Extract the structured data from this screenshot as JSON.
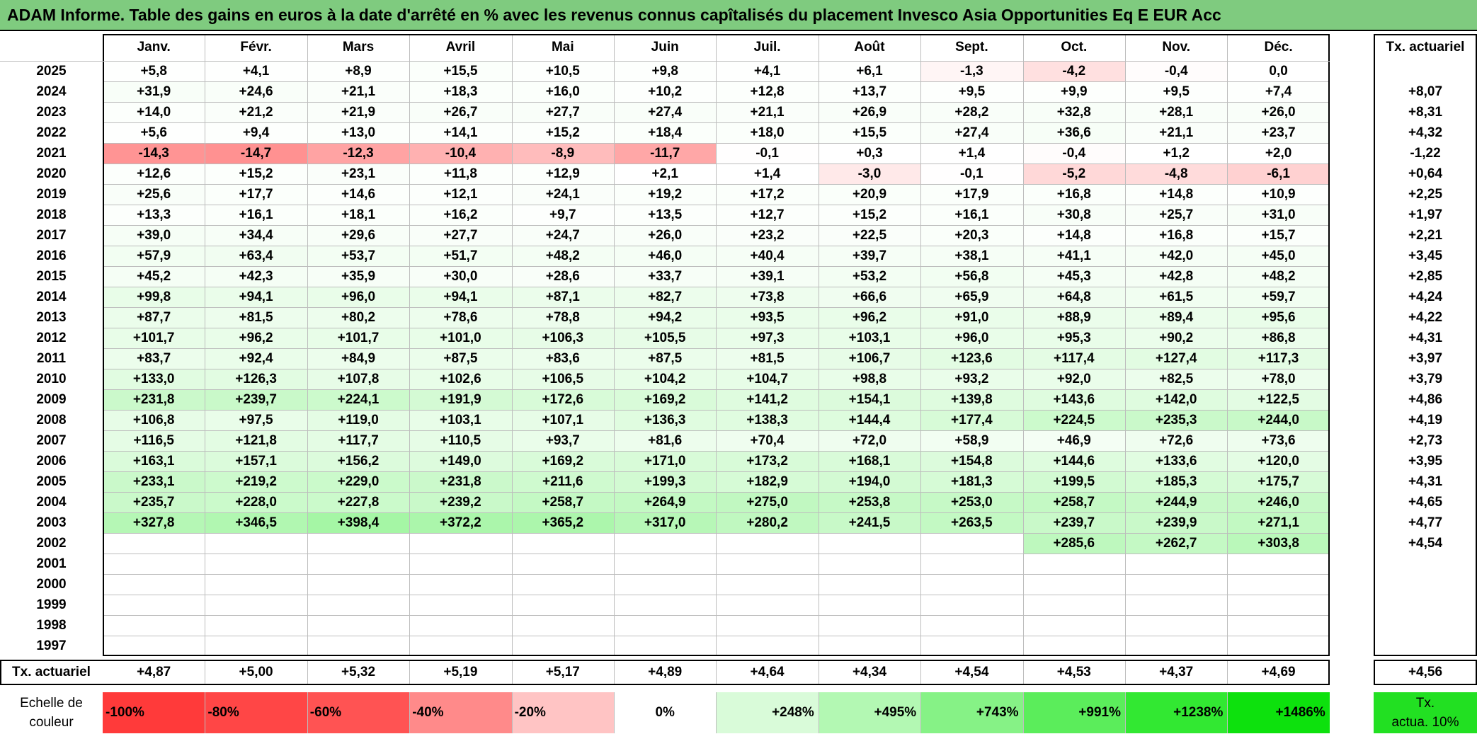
{
  "title": "ADAM Informe. Table des gains en euros à la date d'arrêté en % avec les revenus connus capîtalisés du placement Invesco Asia Opportunities Eq E EUR Acc",
  "chart_data": {
    "type": "heatmap",
    "columns": [
      "Janv.",
      "Févr.",
      "Mars",
      "Avril",
      "Mai",
      "Juin",
      "Juil.",
      "Août",
      "Sept.",
      "Oct.",
      "Nov.",
      "Déc."
    ],
    "rate_header": "Tx. actuariel",
    "rows": [
      {
        "year": "2025",
        "values": [
          "+5,8",
          "+4,1",
          "+8,9",
          "+15,5",
          "+10,5",
          "+9,8",
          "+4,1",
          "+6,1",
          "-1,3",
          "-4,2",
          "-0,4",
          "0,0"
        ],
        "rate": ""
      },
      {
        "year": "2024",
        "values": [
          "+31,9",
          "+24,6",
          "+21,1",
          "+18,3",
          "+16,0",
          "+10,2",
          "+12,8",
          "+13,7",
          "+9,5",
          "+9,9",
          "+9,5",
          "+7,4"
        ],
        "rate": "+8,07"
      },
      {
        "year": "2023",
        "values": [
          "+14,0",
          "+21,2",
          "+21,9",
          "+26,7",
          "+27,7",
          "+27,4",
          "+21,1",
          "+26,9",
          "+28,2",
          "+32,8",
          "+28,1",
          "+26,0"
        ],
        "rate": "+8,31"
      },
      {
        "year": "2022",
        "values": [
          "+5,6",
          "+9,4",
          "+13,0",
          "+14,1",
          "+15,2",
          "+18,4",
          "+18,0",
          "+15,5",
          "+27,4",
          "+36,6",
          "+21,1",
          "+23,7"
        ],
        "rate": "+4,32"
      },
      {
        "year": "2021",
        "values": [
          "-14,3",
          "-14,7",
          "-12,3",
          "-10,4",
          "-8,9",
          "-11,7",
          "-0,1",
          "+0,3",
          "+1,4",
          "-0,4",
          "+1,2",
          "+2,0"
        ],
        "rate": "-1,22"
      },
      {
        "year": "2020",
        "values": [
          "+12,6",
          "+15,2",
          "+23,1",
          "+11,8",
          "+12,9",
          "+2,1",
          "+1,4",
          "-3,0",
          "-0,1",
          "-5,2",
          "-4,8",
          "-6,1"
        ],
        "rate": "+0,64"
      },
      {
        "year": "2019",
        "values": [
          "+25,6",
          "+17,7",
          "+14,6",
          "+12,1",
          "+24,1",
          "+19,2",
          "+17,2",
          "+20,9",
          "+17,9",
          "+16,8",
          "+14,8",
          "+10,9"
        ],
        "rate": "+2,25"
      },
      {
        "year": "2018",
        "values": [
          "+13,3",
          "+16,1",
          "+18,1",
          "+16,2",
          "+9,7",
          "+13,5",
          "+12,7",
          "+15,2",
          "+16,1",
          "+30,8",
          "+25,7",
          "+31,0"
        ],
        "rate": "+1,97"
      },
      {
        "year": "2017",
        "values": [
          "+39,0",
          "+34,4",
          "+29,6",
          "+27,7",
          "+24,7",
          "+26,0",
          "+23,2",
          "+22,5",
          "+20,3",
          "+14,8",
          "+16,8",
          "+15,7"
        ],
        "rate": "+2,21"
      },
      {
        "year": "2016",
        "values": [
          "+57,9",
          "+63,4",
          "+53,7",
          "+51,7",
          "+48,2",
          "+46,0",
          "+40,4",
          "+39,7",
          "+38,1",
          "+41,1",
          "+42,0",
          "+45,0"
        ],
        "rate": "+3,45"
      },
      {
        "year": "2015",
        "values": [
          "+45,2",
          "+42,3",
          "+35,9",
          "+30,0",
          "+28,6",
          "+33,7",
          "+39,1",
          "+53,2",
          "+56,8",
          "+45,3",
          "+42,8",
          "+48,2"
        ],
        "rate": "+2,85"
      },
      {
        "year": "2014",
        "values": [
          "+99,8",
          "+94,1",
          "+96,0",
          "+94,1",
          "+87,1",
          "+82,7",
          "+73,8",
          "+66,6",
          "+65,9",
          "+64,8",
          "+61,5",
          "+59,7"
        ],
        "rate": "+4,24"
      },
      {
        "year": "2013",
        "values": [
          "+87,7",
          "+81,5",
          "+80,2",
          "+78,6",
          "+78,8",
          "+94,2",
          "+93,5",
          "+96,2",
          "+91,0",
          "+88,9",
          "+89,4",
          "+95,6"
        ],
        "rate": "+4,22"
      },
      {
        "year": "2012",
        "values": [
          "+101,7",
          "+96,2",
          "+101,7",
          "+101,0",
          "+106,3",
          "+105,5",
          "+97,3",
          "+103,1",
          "+96,0",
          "+95,3",
          "+90,2",
          "+86,8"
        ],
        "rate": "+4,31"
      },
      {
        "year": "2011",
        "values": [
          "+83,7",
          "+92,4",
          "+84,9",
          "+87,5",
          "+83,6",
          "+87,5",
          "+81,5",
          "+106,7",
          "+123,6",
          "+117,4",
          "+127,4",
          "+117,3"
        ],
        "rate": "+3,97"
      },
      {
        "year": "2010",
        "values": [
          "+133,0",
          "+126,3",
          "+107,8",
          "+102,6",
          "+106,5",
          "+104,2",
          "+104,7",
          "+98,8",
          "+93,2",
          "+92,0",
          "+82,5",
          "+78,0"
        ],
        "rate": "+3,79"
      },
      {
        "year": "2009",
        "values": [
          "+231,8",
          "+239,7",
          "+224,1",
          "+191,9",
          "+172,6",
          "+169,2",
          "+141,2",
          "+154,1",
          "+139,8",
          "+143,6",
          "+142,0",
          "+122,5"
        ],
        "rate": "+4,86"
      },
      {
        "year": "2008",
        "values": [
          "+106,8",
          "+97,5",
          "+119,0",
          "+103,1",
          "+107,1",
          "+136,3",
          "+138,3",
          "+144,4",
          "+177,4",
          "+224,5",
          "+235,3",
          "+244,0"
        ],
        "rate": "+4,19"
      },
      {
        "year": "2007",
        "values": [
          "+116,5",
          "+121,8",
          "+117,7",
          "+110,5",
          "+93,7",
          "+81,6",
          "+70,4",
          "+72,0",
          "+58,9",
          "+46,9",
          "+72,6",
          "+73,6"
        ],
        "rate": "+2,73"
      },
      {
        "year": "2006",
        "values": [
          "+163,1",
          "+157,1",
          "+156,2",
          "+149,0",
          "+169,2",
          "+171,0",
          "+173,2",
          "+168,1",
          "+154,8",
          "+144,6",
          "+133,6",
          "+120,0"
        ],
        "rate": "+3,95"
      },
      {
        "year": "2005",
        "values": [
          "+233,1",
          "+219,2",
          "+229,0",
          "+231,8",
          "+211,6",
          "+199,3",
          "+182,9",
          "+194,0",
          "+181,3",
          "+199,5",
          "+185,3",
          "+175,7"
        ],
        "rate": "+4,31"
      },
      {
        "year": "2004",
        "values": [
          "+235,7",
          "+228,0",
          "+227,8",
          "+239,2",
          "+258,7",
          "+264,9",
          "+275,0",
          "+253,8",
          "+253,0",
          "+258,7",
          "+244,9",
          "+246,0"
        ],
        "rate": "+4,65"
      },
      {
        "year": "2003",
        "values": [
          "+327,8",
          "+346,5",
          "+398,4",
          "+372,2",
          "+365,2",
          "+317,0",
          "+280,2",
          "+241,5",
          "+263,5",
          "+239,7",
          "+239,9",
          "+271,1"
        ],
        "rate": "+4,77"
      },
      {
        "year": "2002",
        "values": [
          "",
          "",
          "",
          "",
          "",
          "",
          "",
          "",
          "",
          "+285,6",
          "+262,7",
          "+303,8"
        ],
        "rate": "+4,54"
      },
      {
        "year": "2001",
        "values": [
          "",
          "",
          "",
          "",
          "",
          "",
          "",
          "",
          "",
          "",
          "",
          ""
        ],
        "rate": ""
      },
      {
        "year": "2000",
        "values": [
          "",
          "",
          "",
          "",
          "",
          "",
          "",
          "",
          "",
          "",
          "",
          ""
        ],
        "rate": ""
      },
      {
        "year": "1999",
        "values": [
          "",
          "",
          "",
          "",
          "",
          "",
          "",
          "",
          "",
          "",
          "",
          ""
        ],
        "rate": ""
      },
      {
        "year": "1998",
        "values": [
          "",
          "",
          "",
          "",
          "",
          "",
          "",
          "",
          "",
          "",
          "",
          ""
        ],
        "rate": ""
      },
      {
        "year": "1997",
        "values": [
          "",
          "",
          "",
          "",
          "",
          "",
          "",
          "",
          "",
          "",
          "",
          ""
        ],
        "rate": ""
      }
    ],
    "summary": {
      "label": "Tx. actuariel",
      "values": [
        "+4,87",
        "+5,00",
        "+5,32",
        "+5,19",
        "+5,17",
        "+4,89",
        "+4,64",
        "+4,34",
        "+4,54",
        "+4,53",
        "+4,37",
        "+4,69"
      ],
      "rate": "+4,56"
    },
    "color_scale": {
      "label_line1": "Echelle de",
      "label_line2": "couleur",
      "stops": [
        {
          "label": "-100%",
          "color": "#ff3a3a"
        },
        {
          "label": "-80%",
          "color": "#ff4646"
        },
        {
          "label": "-60%",
          "color": "#ff5353"
        },
        {
          "label": "-40%",
          "color": "#ff8a8a"
        },
        {
          "label": "-20%",
          "color": "#ffc4c4"
        },
        {
          "label": "0%",
          "color": "#ffffff"
        },
        {
          "label": "+248%",
          "color": "#d9fbd9"
        },
        {
          "label": "+495%",
          "color": "#b3f8b3"
        },
        {
          "label": "+743%",
          "color": "#86f286"
        },
        {
          "label": "+991%",
          "color": "#5bed5b"
        },
        {
          "label": "+1238%",
          "color": "#32e832"
        },
        {
          "label": "+1486%",
          "color": "#0de10d"
        }
      ],
      "rate_line1": "Tx.",
      "rate_line2": "actua. 10%",
      "rate_color": "#22e022"
    }
  }
}
